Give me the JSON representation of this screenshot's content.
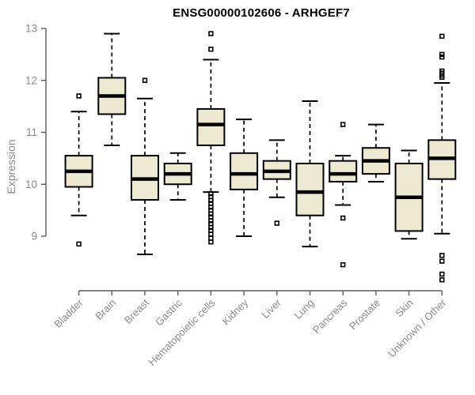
{
  "title": "ENSG00000102606 - ARHGEF7",
  "colors": {
    "box_fill": "#EDE8D0",
    "box_border": "#000000",
    "median": "#000000",
    "whisker": "#000000",
    "outlier": "#000000",
    "axis_line": "#5a5a5a",
    "tick_label": "#8a8a8a",
    "title": "#000000",
    "background": "#ffffff"
  },
  "chart_data": {
    "type": "boxplot",
    "title": "ENSG00000102606 - ARHGEF7",
    "xlabel": "",
    "ylabel": "Expression",
    "ylim": [
      9,
      13
    ],
    "yticks": [
      9,
      10,
      11,
      12,
      13
    ],
    "grid": false,
    "legend": null,
    "categories": [
      "Bladder",
      "Brain",
      "Breast",
      "Gastric",
      "Hematopoietic cells",
      "Kidney",
      "Liver",
      "Lung",
      "Pancreas",
      "Prostate",
      "Skin",
      "Unknown / Other"
    ],
    "series": [
      {
        "category": "Bladder",
        "whisker_low": 9.4,
        "q1": 9.95,
        "median": 10.25,
        "q3": 10.55,
        "whisker_high": 11.4,
        "outliers": [
          11.7,
          8.85
        ]
      },
      {
        "category": "Brain",
        "whisker_low": 10.75,
        "q1": 11.35,
        "median": 11.7,
        "q3": 12.05,
        "whisker_high": 12.9,
        "outliers": []
      },
      {
        "category": "Breast",
        "whisker_low": 8.65,
        "q1": 9.7,
        "median": 10.1,
        "q3": 10.55,
        "whisker_high": 11.65,
        "outliers": [
          12.0
        ]
      },
      {
        "category": "Gastric",
        "whisker_low": 9.7,
        "q1": 10.0,
        "median": 10.2,
        "q3": 10.4,
        "whisker_high": 10.6,
        "outliers": []
      },
      {
        "category": "Hematopoietic cells",
        "whisker_low": 9.85,
        "q1": 10.75,
        "median": 11.15,
        "q3": 11.45,
        "whisker_high": 12.4,
        "outliers": [
          12.9,
          12.6,
          9.82,
          9.76,
          9.69,
          9.63,
          9.56,
          9.5,
          9.43,
          9.37,
          9.3,
          9.24,
          9.17,
          9.11,
          9.04,
          8.96,
          8.89
        ]
      },
      {
        "category": "Kidney",
        "whisker_low": 9.0,
        "q1": 9.9,
        "median": 10.2,
        "q3": 10.6,
        "whisker_high": 11.25,
        "outliers": []
      },
      {
        "category": "Liver",
        "whisker_low": 9.75,
        "q1": 10.1,
        "median": 10.25,
        "q3": 10.45,
        "whisker_high": 10.85,
        "outliers": [
          9.25
        ]
      },
      {
        "category": "Lung",
        "whisker_low": 8.8,
        "q1": 9.4,
        "median": 9.85,
        "q3": 10.4,
        "whisker_high": 11.6,
        "outliers": []
      },
      {
        "category": "Pancreas",
        "whisker_low": 9.6,
        "q1": 10.05,
        "median": 10.2,
        "q3": 10.45,
        "whisker_high": 10.55,
        "outliers": [
          11.15,
          9.35,
          8.45
        ]
      },
      {
        "category": "Prostate",
        "whisker_low": 10.05,
        "q1": 10.2,
        "median": 10.45,
        "q3": 10.7,
        "whisker_high": 11.15,
        "outliers": []
      },
      {
        "category": "Skin",
        "whisker_low": 8.95,
        "q1": 9.1,
        "median": 9.75,
        "q3": 10.4,
        "whisker_high": 10.65,
        "outliers": []
      },
      {
        "category": "Unknown / Other",
        "whisker_low": 9.05,
        "q1": 10.1,
        "median": 10.5,
        "q3": 10.85,
        "whisker_high": 11.95,
        "outliers": [
          12.85,
          12.5,
          12.45,
          12.18,
          12.14,
          12.1,
          12.06,
          8.63,
          8.52,
          8.27,
          8.16
        ]
      }
    ]
  }
}
